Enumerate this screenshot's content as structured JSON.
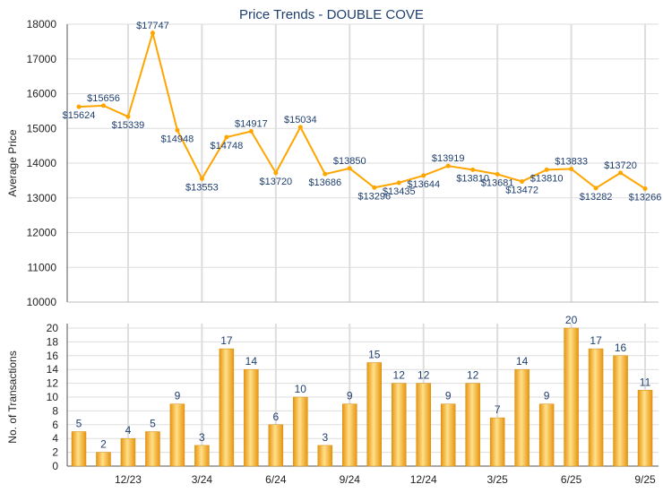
{
  "chart_data": [
    {
      "type": "line",
      "title": "Price Trends - DOUBLE COVE",
      "ylabel": "Average Price",
      "ylim": [
        10000,
        18000
      ],
      "yticks": [
        10000,
        11000,
        12000,
        13000,
        14000,
        15000,
        16000,
        17000,
        18000
      ],
      "grid": true,
      "color": "#FFA500",
      "values": [
        15624,
        15656,
        15339,
        17747,
        14948,
        13553,
        14748,
        14917,
        13720,
        15034,
        13686,
        13850,
        13296,
        13435,
        13644,
        13919,
        13810,
        13681,
        13472,
        13810,
        13833,
        13282,
        13720,
        13266
      ],
      "labels": [
        "$15624",
        "$15656",
        "$15339",
        "$17747",
        "$14948",
        "$13553",
        "$14748",
        "$14917",
        "$13720",
        "$15034",
        "$13686",
        "$13850",
        "$13296",
        "$13435",
        "$13644",
        "$13919",
        "$13810",
        "$13681",
        "$13472",
        "$13810",
        "$13833",
        "$13282",
        "$13720",
        "$13266"
      ]
    },
    {
      "type": "bar",
      "ylabel": "No. of Transactions",
      "ylim": [
        0,
        20
      ],
      "yticks": [
        0,
        2,
        4,
        6,
        8,
        10,
        12,
        14,
        16,
        18,
        20
      ],
      "grid": true,
      "color": "#F5A623",
      "values": [
        5,
        2,
        4,
        5,
        9,
        3,
        17,
        14,
        6,
        10,
        3,
        9,
        15,
        12,
        12,
        9,
        12,
        7,
        14,
        9,
        20,
        17,
        16,
        11
      ],
      "xticks": [
        {
          "index": 2,
          "label": "12/23"
        },
        {
          "index": 5,
          "label": "3/24"
        },
        {
          "index": 8,
          "label": "6/24"
        },
        {
          "index": 11,
          "label": "9/24"
        },
        {
          "index": 14,
          "label": "12/24"
        },
        {
          "index": 17,
          "label": "3/25"
        },
        {
          "index": 20,
          "label": "6/25"
        },
        {
          "index": 23,
          "label": "9/25"
        }
      ]
    }
  ]
}
